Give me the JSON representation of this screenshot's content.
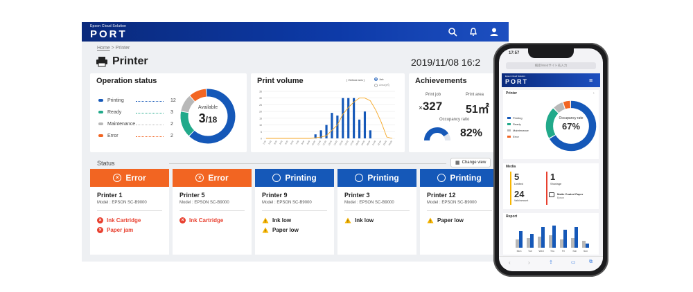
{
  "app": {
    "brand_sub": "Epson Cloud Solution",
    "brand": "PORT"
  },
  "breadcrumb": {
    "home": "Home",
    "sep": " > ",
    "current": "Printer"
  },
  "page": {
    "title": "Printer",
    "date": "2019/11/08  16:2"
  },
  "operation": {
    "title": "Operation status",
    "legend": [
      {
        "label": "Printing",
        "value": "12",
        "color": "#1558b8"
      },
      {
        "label": "Ready",
        "value": "3",
        "color": "#21a98a"
      },
      {
        "label": "Maintenance",
        "value": "2",
        "color": "#b8b8b8"
      },
      {
        "label": "Error",
        "value": "2",
        "color": "#f26522"
      }
    ],
    "donut_label": "Available",
    "available": "3",
    "total": "/18"
  },
  "volume": {
    "title": "Print volume",
    "axis_note": "[ Vertical axis ]",
    "opt_job": "Job",
    "opt_area": "Area(㎡)"
  },
  "achievements": {
    "title": "Achievements",
    "job_label": "Print job",
    "job_value": "327",
    "job_prefix": "×",
    "area_label": "Print area",
    "area_value": "51㎡",
    "occ_label": "Occupancy ratio",
    "occ_value": "82%",
    "occupancy": 0.82
  },
  "status": {
    "title": "Status",
    "change_view": "Change view",
    "cards": [
      {
        "state": "Error",
        "name": "Printer 1",
        "model": "Model : EPSON SC-B9000",
        "issues": [
          {
            "type": "error",
            "text": "Ink Cartridge"
          },
          {
            "type": "error",
            "text": "Paper jam"
          }
        ]
      },
      {
        "state": "Error",
        "name": "Printer 5",
        "model": "Model : EPSON SC-B9000",
        "issues": [
          {
            "type": "error",
            "text": "Ink Cartridge"
          }
        ]
      },
      {
        "state": "Printing",
        "name": "Printer 9",
        "model": "Model : EPSON SC-B9000",
        "issues": [
          {
            "type": "warn",
            "text": "Ink low"
          },
          {
            "type": "warn",
            "text": "Paper low"
          }
        ]
      },
      {
        "state": "Printing",
        "name": "Printer 3",
        "model": "Model : EPSON SC-B9000",
        "issues": [
          {
            "type": "warn",
            "text": "Ink low"
          }
        ]
      },
      {
        "state": "Printing",
        "name": "Printer 12",
        "model": "Model : EPSON SC-B9000",
        "issues": [
          {
            "type": "warn",
            "text": "Paper low"
          }
        ]
      }
    ]
  },
  "chart_data": {
    "type": "bar",
    "x": [
      "1:00",
      "2:00",
      "3:00",
      "4:00",
      "5:00",
      "6:00",
      "7:00",
      "8:00",
      "9:00",
      "10:00",
      "11:00",
      "12:00",
      "13:00",
      "14:00",
      "15:00",
      "16:00",
      "17:00",
      "18:00",
      "19:00",
      "20:00",
      "21:00",
      "22:00",
      "23:00",
      "24:00"
    ],
    "series": [
      {
        "name": "Job",
        "type": "bar",
        "values": [
          0,
          0,
          0,
          0,
          0,
          0,
          0,
          0,
          0,
          3,
          6,
          10,
          19,
          17,
          30,
          30,
          30,
          14,
          20,
          6,
          0,
          0,
          0,
          0
        ]
      },
      {
        "name": "Area(㎡)",
        "type": "line",
        "values": [
          0,
          0,
          0,
          0,
          0,
          0,
          0,
          0,
          0,
          0.5,
          1,
          2,
          6,
          10,
          18,
          23,
          27,
          30,
          30,
          28,
          21,
          12,
          1,
          0
        ]
      }
    ],
    "yticks": [
      "35",
      "30",
      "25",
      "20",
      "15",
      "10",
      "5",
      "0"
    ],
    "ylim": [
      0,
      35
    ]
  },
  "mobile": {
    "time": "17:57",
    "search": "検索/Webサイト名入力",
    "brand_sub": "Epson Cloud Solution",
    "brand": "PORT",
    "printer": "Printer",
    "occ_label": "Occupancy rate",
    "occ_value": "67%",
    "legend": [
      "Printing",
      "Ready",
      "Maintenance",
      "Error"
    ],
    "media": "Media",
    "m1": "5",
    "m1l": "Limited",
    "m2": "1",
    "m2l": "Shortage",
    "m3": "24",
    "m3l": "Valid amount",
    "m4": "Matte Coated Paper",
    "m4l": "Epson",
    "report": "Report",
    "days": [
      "Mon",
      "Tue",
      "Wed",
      "Thu",
      "Fri",
      "Sat",
      "Sun"
    ]
  }
}
